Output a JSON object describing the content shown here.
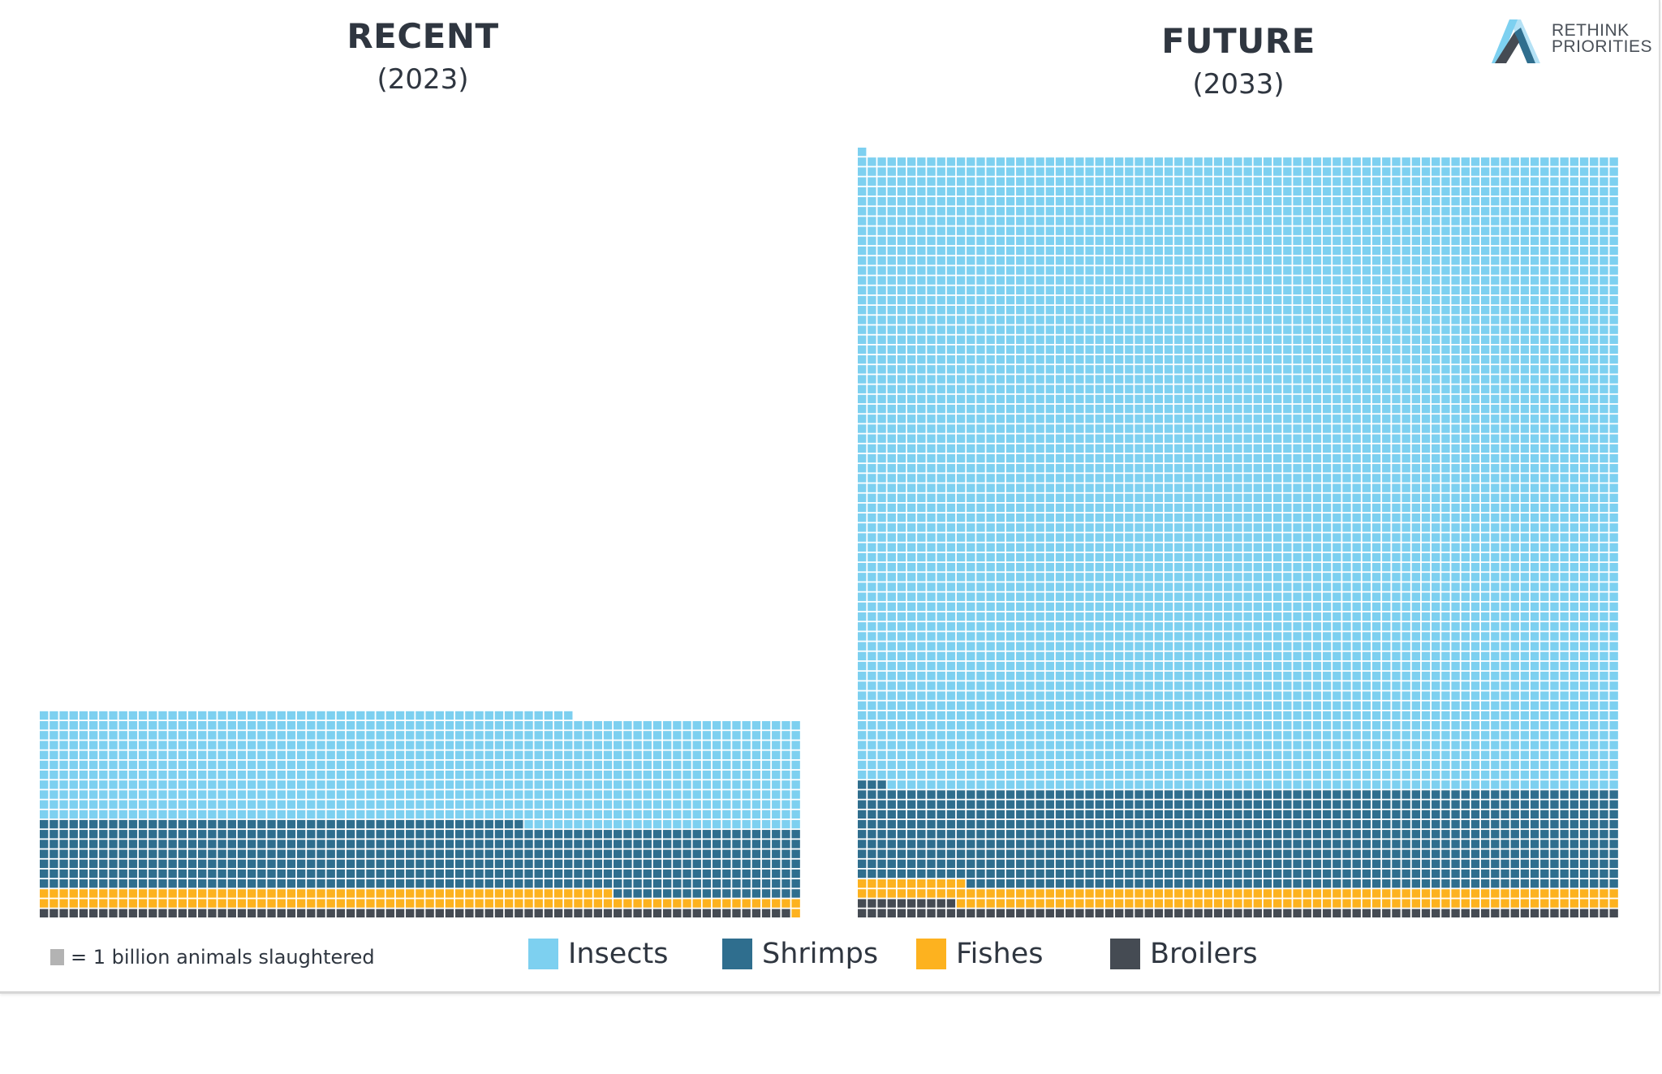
{
  "logo": {
    "line1": "RETHINK",
    "line2": "PRIORITIES"
  },
  "chart_data": [
    {
      "type": "waffle",
      "title": "RECENT",
      "subtitle": "(2023)",
      "columns": 77,
      "unit": "1 billion animals slaughtered",
      "fill_order": "bottom-up, left-to-right",
      "series": [
        {
          "name": "Broilers",
          "value": 76
        },
        {
          "name": "Fishes",
          "value": 136
        },
        {
          "name": "Shrimps",
          "value": 530
        },
        {
          "name": "Insects",
          "value": 852
        }
      ]
    },
    {
      "type": "waffle",
      "title": "FUTURE",
      "subtitle": "(2033)",
      "columns": 77,
      "unit": "1 billion animals slaughtered",
      "fill_order": "bottom-up, left-to-right",
      "series": [
        {
          "name": "Broilers",
          "value": 87
        },
        {
          "name": "Fishes",
          "value": 155
        },
        {
          "name": "Shrimps",
          "value": 762
        },
        {
          "name": "Insects",
          "value": 4926
        }
      ]
    }
  ],
  "legend": {
    "note": "= 1 billion animals slaughtered",
    "note_color": "#b3b3b3",
    "items": [
      {
        "label": "Insects",
        "color": "#7dd0f0"
      },
      {
        "label": "Shrimps",
        "color": "#2f6e8e"
      },
      {
        "label": "Fishes",
        "color": "#fdb21f"
      },
      {
        "label": "Broilers",
        "color": "#454b53"
      }
    ]
  }
}
